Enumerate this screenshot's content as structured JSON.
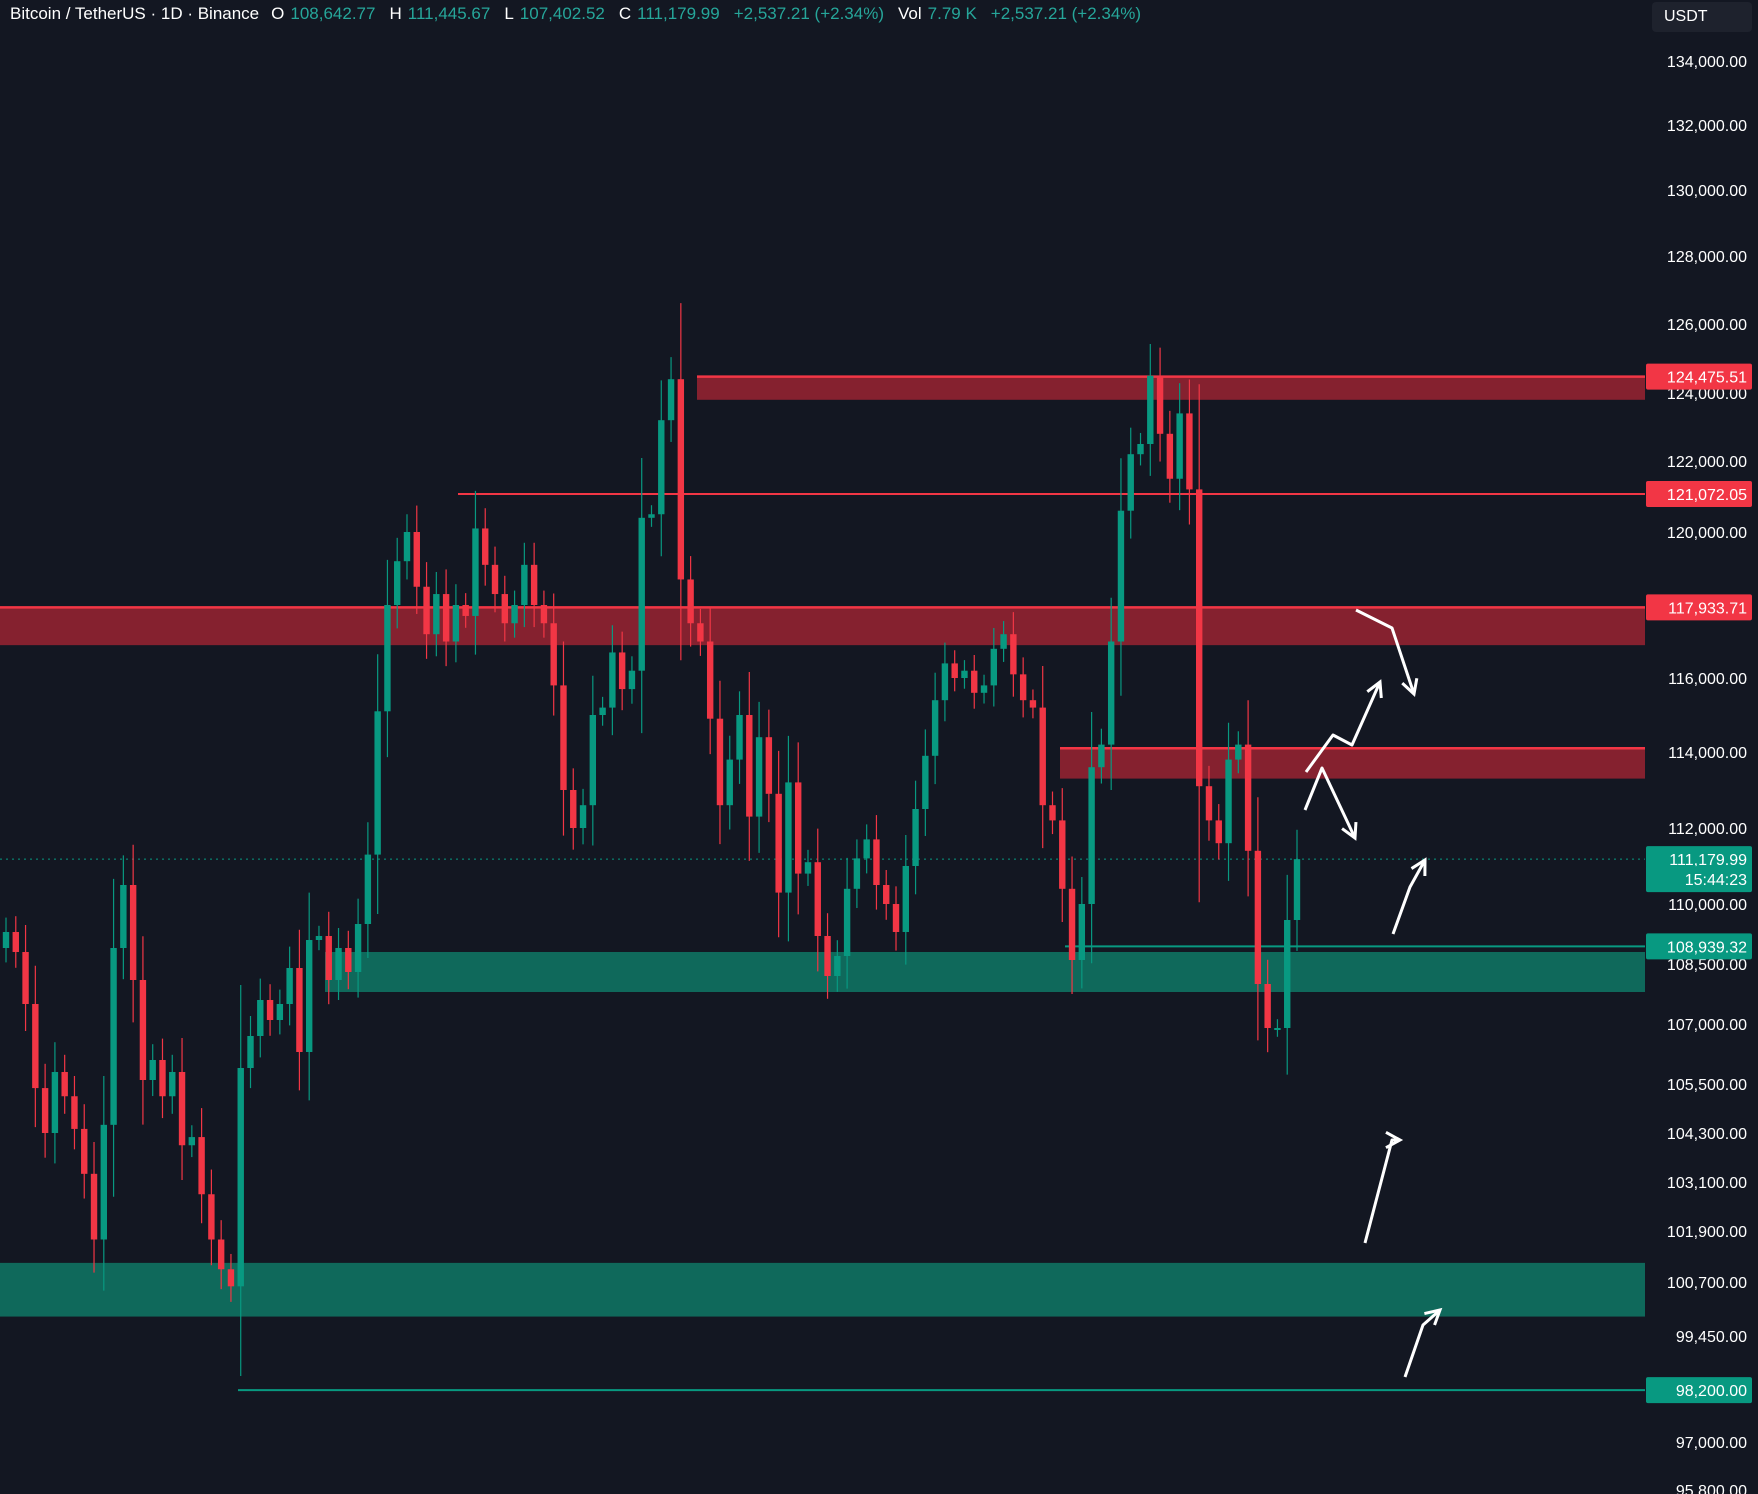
{
  "header": {
    "symbol": "Bitcoin / TetherUS · 1D · Binance",
    "o_label": "O",
    "o_value": "108,642.77",
    "h_label": "H",
    "h_value": "111,445.67",
    "l_label": "L",
    "l_value": "107,402.52",
    "c_label": "C",
    "c_value": "111,179.99",
    "change": "+2,537.21 (+2.34%)",
    "vol_label": "Vol",
    "vol_value": "7.79 K",
    "vol_change": "+2,537.21 (+2.34%)"
  },
  "currency": "USDT",
  "colors": {
    "background": "#131722",
    "up": "#089981",
    "down": "#f23645",
    "zone_red": "#8b2230",
    "zone_green": "#0f6e5f",
    "arrow": "#ffffff"
  },
  "chart_data": {
    "type": "candlestick",
    "title": "Bitcoin / TetherUS · 1D · Binance",
    "ylim": [
      95800,
      135000
    ],
    "y_ticks": [
      "134,000.00",
      "132,000.00",
      "130,000.00",
      "128,000.00",
      "126,000.00",
      "124,000.00",
      "122,000.00",
      "120,000.00",
      "116,000.00",
      "114,000.00",
      "112,000.00",
      "110,000.00",
      "108,500.00",
      "107,000.00",
      "105,500.00",
      "104,300.00",
      "103,100.00",
      "101,900.00",
      "100,700.00",
      "99,450.00",
      "97,000.00",
      "95,800.00"
    ],
    "y_tick_values": [
      134000,
      132000,
      130000,
      128000,
      126000,
      124000,
      122000,
      120000,
      116000,
      114000,
      112000,
      110000,
      108500,
      107000,
      105500,
      104300,
      103100,
      101900,
      100700,
      99450,
      97000,
      95800
    ],
    "closes": [
      109300,
      108800,
      107500,
      105400,
      104300,
      105800,
      105200,
      104400,
      103300,
      101700,
      104500,
      108900,
      110500,
      108100,
      105600,
      106100,
      105200,
      105800,
      104000,
      104200,
      102800,
      101700,
      101000,
      100600,
      105900,
      106700,
      107600,
      107100,
      107500,
      108400,
      106300,
      109100,
      109200,
      108100,
      108900,
      108300,
      109500,
      111300,
      115100,
      118000,
      119200,
      120000,
      118500,
      117200,
      118300,
      117000,
      118000,
      117700,
      120100,
      119100,
      118300,
      117500,
      118000,
      119100,
      118000,
      117500,
      115800,
      113000,
      112000,
      112600,
      115000,
      115200,
      116700,
      115700,
      116200,
      120400,
      120500,
      123200,
      124400,
      118700,
      117500,
      117000,
      114900,
      112600,
      113800,
      115000,
      112300,
      114400,
      112900,
      110300,
      113200,
      110800,
      111100,
      109200,
      108200,
      108700,
      110400,
      111200,
      111700,
      110500,
      110000,
      109300,
      111000,
      112500,
      113900,
      115400,
      116400,
      116000,
      116200,
      115600,
      115800,
      116800,
      117200,
      116100,
      115400,
      115200,
      112600,
      112200,
      110400,
      108600,
      110000,
      113600,
      114200,
      117000,
      120600,
      122200,
      122500,
      124500,
      122800,
      121500,
      123400,
      121200,
      113100,
      112200,
      111600,
      113800,
      114200,
      111400,
      108000,
      106900,
      106900,
      109600,
      111180
    ],
    "price_labels": [
      "124,475.51",
      "121,072.05",
      "117,933.71",
      "111,179.99",
      "15:44:23",
      "108,939.32",
      "98,200.00"
    ],
    "price_label_values": [
      124475.51,
      121072.05,
      117933.71,
      111179.99,
      null,
      108939.32,
      98200
    ],
    "resistance_zones": [
      [
        123800,
        124475.51
      ],
      [
        116900,
        117933.71
      ],
      [
        113300,
        114100
      ]
    ],
    "support_zones": [
      [
        107800,
        108800
      ],
      [
        99900,
        101150
      ]
    ],
    "horizontal_lines": [
      {
        "value": 121072.05,
        "color": "#f23645"
      },
      {
        "value": 108939.32,
        "color": "#089981"
      },
      {
        "value": 98200.0,
        "color": "#089981"
      }
    ]
  }
}
